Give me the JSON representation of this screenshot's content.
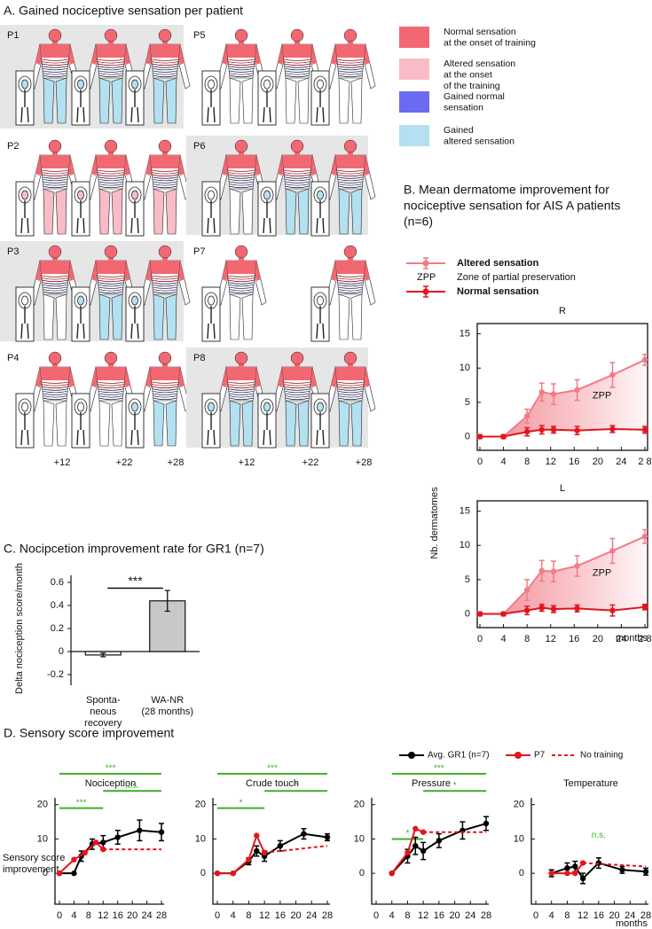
{
  "panel_a": {
    "title": "A. Gained nociceptive sensation per patient",
    "patients": [
      "P1",
      "P2",
      "P3",
      "P4",
      "P5",
      "P6",
      "P7",
      "P8"
    ],
    "timepoints": [
      "+12",
      "+22",
      "+28"
    ],
    "legend": [
      {
        "label": [
          "Normal sensation",
          "at the onset of training"
        ],
        "color": "#f26872"
      },
      {
        "label": [
          "Altered sensation",
          "at the onset",
          "of the training"
        ],
        "color": "#f9bcc6"
      },
      {
        "label": [
          "Gained normal",
          "sensation"
        ],
        "color": "#6b6bf2"
      },
      {
        "label": [
          "Gained",
          "altered sensation"
        ],
        "color": "#b3e1f1"
      }
    ]
  },
  "panel_b": {
    "title": [
      "B. Mean dermatome improvement for",
      "nociceptive sensation for AIS A patients",
      "(n=6)"
    ],
    "legend_zpp": "ZPP",
    "legend_zpp_desc": "Zone of partial preservation",
    "ylabel": "Nb. dermatomes",
    "xlabel": "months"
  },
  "panel_d": {
    "title": "D. Sensory score improvement",
    "ylabel": [
      "Sensory score",
      "improvement"
    ],
    "xlabel": "months"
  },
  "chart_data": [
    {
      "type": "line",
      "title": "R",
      "xlim": [
        0,
        28
      ],
      "ylim": [
        -2,
        16.5
      ],
      "xticks": [
        0,
        4,
        8,
        12,
        16,
        20,
        24,
        {
          "value": 28,
          "label": "2 8"
        }
      ],
      "yticks": [
        0,
        5,
        10,
        15
      ],
      "annotation": "ZPP",
      "series": [
        {
          "name": "Altered sensation",
          "color": "#f07c86",
          "x": [
            0,
            4,
            8,
            10.5,
            12.5,
            16.5,
            22.5,
            28
          ],
          "values": [
            0,
            0,
            3,
            6.5,
            6.2,
            6.8,
            9,
            11.2
          ],
          "errors": [
            0.3,
            0.3,
            1,
            1.3,
            1.5,
            1.5,
            1.8,
            0.8
          ]
        },
        {
          "name": "Normal sensation",
          "color": "#e3141c",
          "x": [
            0,
            4,
            8,
            10.5,
            12.5,
            16.5,
            22.5,
            28
          ],
          "values": [
            0,
            0,
            0.7,
            1,
            1,
            0.9,
            1.1,
            1
          ],
          "errors": [
            0.2,
            0.2,
            0.6,
            0.6,
            0.5,
            0.6,
            0.5,
            0.5
          ]
        }
      ]
    },
    {
      "type": "line",
      "title": "L",
      "xlim": [
        0,
        28
      ],
      "ylim": [
        -2,
        16.5
      ],
      "xticks": [
        0,
        4,
        8,
        12,
        16,
        20,
        24,
        {
          "value": 28,
          "label": "2 8"
        }
      ],
      "yticks": [
        0,
        5,
        10,
        15
      ],
      "annotation": "ZPP",
      "series": [
        {
          "color": "#f07c86",
          "x": [
            0,
            4,
            8,
            10.5,
            12.5,
            16.5,
            22.5,
            28
          ],
          "values": [
            0,
            0,
            3.5,
            6.3,
            6.2,
            7,
            9.2,
            11.3
          ],
          "errors": [
            0.3,
            0.3,
            1.5,
            1.5,
            1.5,
            1.5,
            1.8,
            1
          ]
        },
        {
          "color": "#e3141c",
          "x": [
            0,
            4,
            8,
            10.5,
            12.5,
            16.5,
            22.5,
            28
          ],
          "values": [
            0,
            0,
            0.5,
            0.9,
            0.7,
            0.8,
            0.5,
            1
          ],
          "errors": [
            0.2,
            0.2,
            0.6,
            0.5,
            0.5,
            0.5,
            0.8,
            0.4
          ]
        }
      ]
    },
    {
      "type": "bar",
      "title": "C. Nocipcetion improvement rate for GR1 (n=7)",
      "ylabel": "Delta nociception score/month",
      "categories": [
        [
          "Sponta-",
          "neous",
          "recovery"
        ],
        [
          "WA-NR",
          "(28 months)"
        ]
      ],
      "values": [
        -0.03,
        0.44
      ],
      "errors": [
        0.015,
        0.09
      ],
      "colors": [
        "#ffffff",
        "#c8c8c8"
      ],
      "ylim": [
        -0.2,
        0.6
      ],
      "yticks": [
        -0.2,
        0,
        0.2,
        0.4,
        0.6
      ],
      "significance": [
        {
          "from": 0,
          "to": 1,
          "y": 0.55,
          "label": "***"
        }
      ]
    },
    {
      "type": "line",
      "title": "Nociception",
      "xlim": [
        0,
        28
      ],
      "ylim": [
        -9,
        22
      ],
      "xticks": [
        0,
        4,
        8,
        12,
        16,
        20,
        24,
        28
      ],
      "yticks": [
        0,
        10,
        20
      ],
      "series": [
        {
          "name": "Avg. GR1 (n=7)",
          "color": "#000000",
          "x": [
            0,
            4,
            6,
            9,
            12,
            16,
            22,
            28
          ],
          "values": [
            0,
            0,
            5,
            8.5,
            9,
            10.5,
            12.5,
            12
          ],
          "errors": [
            0,
            0,
            1.5,
            1.5,
            2,
            2,
            3,
            2.5
          ]
        },
        {
          "name": "P7",
          "color": "#e8141b",
          "x": [
            0,
            4,
            7,
            10,
            12
          ],
          "values": [
            0,
            4,
            6,
            9,
            7
          ]
        },
        {
          "name": "No training",
          "color": "#e8141b",
          "dash": true,
          "x": [
            12,
            28
          ],
          "values": [
            7,
            7
          ]
        }
      ],
      "significance": [
        {
          "from": 0,
          "to": 28,
          "y": 29,
          "label": "***"
        },
        {
          "from": 0,
          "to": 12,
          "y": 19,
          "label": "***"
        },
        {
          "from": 12,
          "to": 28,
          "y": 24,
          "label": "n.s."
        }
      ]
    },
    {
      "type": "line",
      "title": "Crude touch",
      "xlim": [
        0,
        28
      ],
      "ylim": [
        -9,
        22
      ],
      "xticks": [
        0,
        4,
        8,
        12,
        16,
        20,
        24,
        28
      ],
      "yticks": [
        0,
        10,
        20
      ],
      "series": [
        {
          "color": "#000000",
          "x": [
            0,
            4,
            8,
            10,
            12,
            16,
            22,
            28
          ],
          "values": [
            0,
            0,
            3.5,
            6.5,
            5,
            8,
            11.5,
            10.5
          ],
          "errors": [
            0,
            0,
            1,
            1.5,
            1.5,
            1.5,
            1.5,
            1
          ]
        },
        {
          "color": "#e8141b",
          "x": [
            0,
            4,
            8,
            10,
            12
          ],
          "values": [
            0,
            0,
            4,
            11,
            6
          ]
        },
        {
          "color": "#e8141b",
          "dash": true,
          "x": [
            12,
            28
          ],
          "values": [
            6,
            8
          ]
        }
      ],
      "significance": [
        {
          "from": 0,
          "to": 28,
          "y": 29,
          "label": "***"
        },
        {
          "from": 0,
          "to": 12,
          "y": 19,
          "label": "*"
        },
        {
          "from": 12,
          "to": 28,
          "y": 24,
          "label": "*"
        }
      ]
    },
    {
      "type": "line",
      "title": "Pressure",
      "xlim": [
        0,
        28
      ],
      "ylim": [
        -9,
        22
      ],
      "xticks": [
        0,
        4,
        8,
        12,
        16,
        20,
        24,
        28
      ],
      "yticks": [
        0,
        10,
        20
      ],
      "series": [
        {
          "color": "#000000",
          "x": [
            4,
            8,
            10,
            12,
            16,
            22,
            28
          ],
          "values": [
            0,
            5,
            8,
            6.5,
            9.5,
            12.5,
            14.5
          ],
          "errors": [
            0,
            2,
            2.5,
            2.5,
            2,
            2.5,
            2
          ]
        },
        {
          "color": "#e8141b",
          "x": [
            4,
            8,
            10,
            12
          ],
          "values": [
            0,
            6,
            13,
            12
          ]
        },
        {
          "color": "#e8141b",
          "dash": true,
          "x": [
            12,
            28
          ],
          "values": [
            12,
            12
          ]
        }
      ],
      "significance": [
        {
          "from": 4,
          "to": 28,
          "y": 29,
          "label": "***"
        },
        {
          "from": 12,
          "to": 28,
          "y": 24,
          "label": "*"
        },
        {
          "from": 4,
          "to": 12,
          "y": 10,
          "label": "*"
        }
      ]
    },
    {
      "type": "line",
      "title": "Temperature",
      "xlim": [
        0,
        28
      ],
      "ylim": [
        -9,
        22
      ],
      "xticks": [
        0,
        4,
        8,
        12,
        16,
        20,
        24,
        28
      ],
      "yticks": [
        0,
        10,
        20
      ],
      "series": [
        {
          "color": "#000000",
          "x": [
            4,
            8,
            10,
            12,
            16,
            22,
            28
          ],
          "values": [
            0,
            1.5,
            2,
            -1.5,
            3,
            1,
            0.5
          ],
          "errors": [
            1,
            1.5,
            1.5,
            1.5,
            1.5,
            1,
            1
          ]
        },
        {
          "color": "#e8141b",
          "x": [
            4,
            8,
            10,
            12
          ],
          "values": [
            0,
            0,
            0,
            3
          ]
        },
        {
          "color": "#e8141b",
          "dash": true,
          "x": [
            12,
            28
          ],
          "values": [
            3,
            2
          ]
        }
      ],
      "significance": [
        {
          "at": 16,
          "y": 11,
          "label": "n.s."
        }
      ]
    }
  ]
}
